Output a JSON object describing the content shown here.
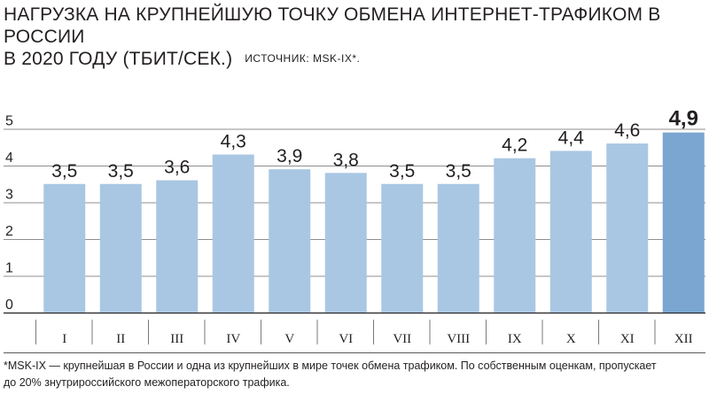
{
  "title_line1": "НАГРУЗКА НА КРУПНЕЙШУЮ ТОЧКУ ОБМЕНА ИНТЕРНЕТ-ТРАФИКОМ В РОССИИ",
  "title_line2": "В 2020 ГОДУ (ТБИТ/СЕК.)",
  "source": "ИСТОЧНИК: MSK-IX*.",
  "footnote_line1": "*MSK-IX — крупнейшая в России и одна из крупнейших в мире точек обмена трафиком. По собственным оценкам, пропускает",
  "footnote_line2": "до 20% знутрироссийского межоператорского трафика.",
  "colors": {
    "bar": "#a9c7e3",
    "highlight": "#7aa6d1",
    "grid": "#231f20",
    "text": "#231f20"
  },
  "chart_data": {
    "type": "bar",
    "categories": [
      "I",
      "II",
      "III",
      "IV",
      "V",
      "VI",
      "VII",
      "VIII",
      "IX",
      "X",
      "XI",
      "XII"
    ],
    "values": [
      3.5,
      3.5,
      3.6,
      4.3,
      3.9,
      3.8,
      3.5,
      3.5,
      4.2,
      4.4,
      4.6,
      4.9
    ],
    "value_labels": [
      "3,5",
      "3,5",
      "3,6",
      "4,3",
      "3,9",
      "3,8",
      "3,5",
      "3,5",
      "4,2",
      "4,4",
      "4,6",
      "4,9"
    ],
    "highlight_index": 11,
    "ylim": [
      0,
      5
    ],
    "yticks": [
      0,
      1,
      2,
      3,
      4,
      5
    ],
    "grid": true,
    "title": "НАГРУЗКА НА КРУПНЕЙШУЮ ТОЧКУ ОБМЕНА ИНТЕРНЕТ-ТРАФИКОМ В РОССИИ В 2020 ГОДУ (ТБИТ/СЕК.)",
    "xlabel": "",
    "ylabel": ""
  }
}
